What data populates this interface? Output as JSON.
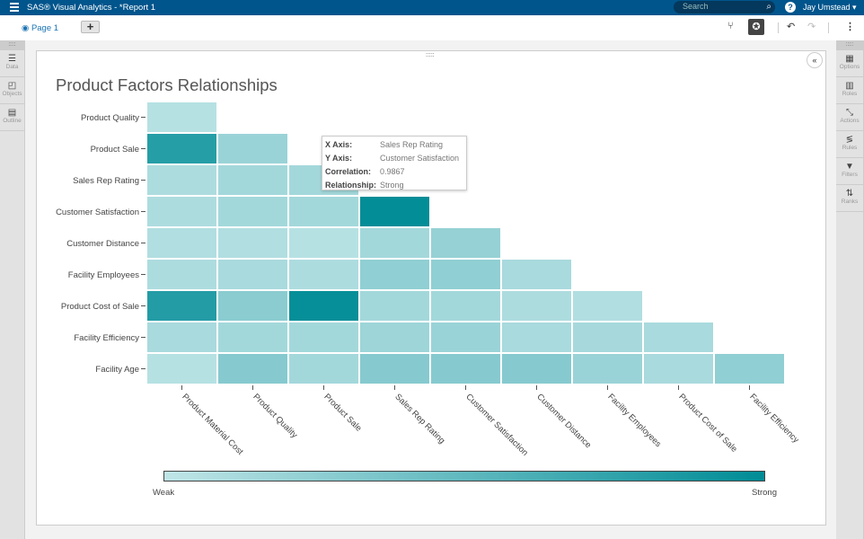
{
  "app": {
    "title": "SAS® Visual Analytics - *Report 1",
    "search_placeholder": "Search",
    "user": "Jay Umstead"
  },
  "toolbar": {
    "page_tab": "Page 1",
    "add_label": "+"
  },
  "left_panel": [
    {
      "label": "Data",
      "icon": "database-icon"
    },
    {
      "label": "Objects",
      "icon": "objects-icon"
    },
    {
      "label": "Outline",
      "icon": "outline-icon"
    }
  ],
  "right_panel": [
    {
      "label": "Options",
      "icon": "options-icon"
    },
    {
      "label": "Roles",
      "icon": "roles-icon"
    },
    {
      "label": "Actions",
      "icon": "actions-icon"
    },
    {
      "label": "Rules",
      "icon": "rules-icon"
    },
    {
      "label": "Filters",
      "icon": "filter-icon"
    },
    {
      "label": "Ranks",
      "icon": "ranks-icon"
    }
  ],
  "tooltip": {
    "x_label": "X Axis:",
    "x_value": "Sales Rep Rating",
    "y_label": "Y Axis:",
    "y_value": "Customer Satisfaction",
    "corr_label": "Correlation:",
    "corr_value": "0.9867",
    "rel_label": "Relationship:",
    "rel_value": "Strong"
  },
  "chart_data": {
    "type": "heatmap",
    "title": "Product Factors Relationships",
    "rows": [
      "Product Quality",
      "Product Sale",
      "Sales Rep Rating",
      "Customer Satisfaction",
      "Customer Distance",
      "Facility Employees",
      "Product Cost of Sale",
      "Facility Efficiency",
      "Facility Age"
    ],
    "columns": [
      "Product Material Cost",
      "Product Quality",
      "Product Sale",
      "Sales Rep Rating",
      "Customer Satisfaction",
      "Customer Distance",
      "Facility Employees",
      "Product Cost of Sale",
      "Facility Efficiency"
    ],
    "values": [
      [
        0.05
      ],
      [
        0.8,
        0.2
      ],
      [
        0.1,
        0.15,
        0.15
      ],
      [
        0.1,
        0.15,
        0.15,
        0.9867
      ],
      [
        0.08,
        0.08,
        0.05,
        0.15,
        0.22
      ],
      [
        0.1,
        0.12,
        0.1,
        0.25,
        0.25,
        0.12
      ],
      [
        0.82,
        0.28,
        0.97,
        0.15,
        0.15,
        0.1,
        0.08
      ],
      [
        0.12,
        0.15,
        0.15,
        0.18,
        0.2,
        0.12,
        0.13,
        0.12
      ],
      [
        0.05,
        0.3,
        0.15,
        0.3,
        0.3,
        0.3,
        0.2,
        0.12,
        0.25
      ]
    ],
    "legend": {
      "min_label": "Weak",
      "max_label": "Strong",
      "min_color": "#c0e5e7",
      "max_color": "#008c96"
    }
  }
}
